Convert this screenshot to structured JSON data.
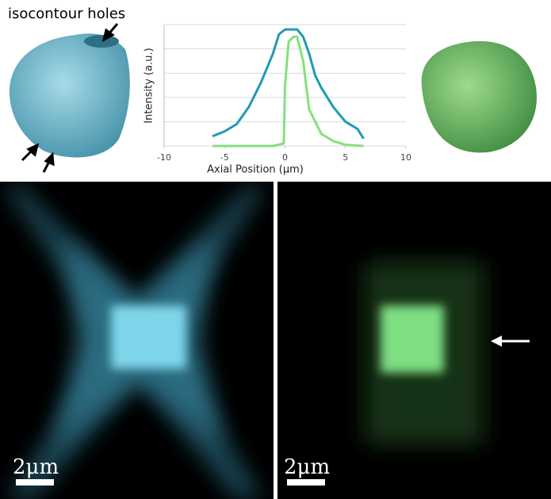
{
  "chart_data": {
    "type": "line",
    "xlabel": "Axial Position (μm)",
    "ylabel": "Intensity (a.u.)",
    "xlim": [
      -10,
      10
    ],
    "xticks": [
      -10,
      -5,
      0,
      5,
      10
    ],
    "ylim": [
      0,
      5
    ],
    "yticks": [
      0,
      1,
      2,
      3,
      4,
      5
    ],
    "grid": true,
    "series": [
      {
        "color": "#1f9ab4",
        "x": [
          -6,
          -5,
          -4,
          -3,
          -2,
          -1,
          -0.5,
          0,
          0.5,
          1,
          1.5,
          2,
          2.5,
          3,
          4,
          5,
          6,
          6.5
        ],
        "values": [
          0.4,
          0.6,
          0.9,
          1.6,
          2.6,
          3.8,
          4.6,
          4.8,
          4.8,
          4.8,
          4.5,
          3.8,
          2.9,
          2.4,
          1.6,
          1.0,
          0.7,
          0.3
        ]
      },
      {
        "color": "#86e07c",
        "x": [
          -6,
          -1,
          -0.1,
          0,
          0.3,
          0.7,
          1,
          1.5,
          2,
          3,
          4,
          5,
          6.5
        ],
        "values": [
          0,
          0,
          0.1,
          2.5,
          4.3,
          4.5,
          4.5,
          3.5,
          1.5,
          0.5,
          0.2,
          0.05,
          0
        ]
      }
    ]
  },
  "annotation": "isocontour holes",
  "scale_bars": [
    "2μm",
    "2μm"
  ]
}
